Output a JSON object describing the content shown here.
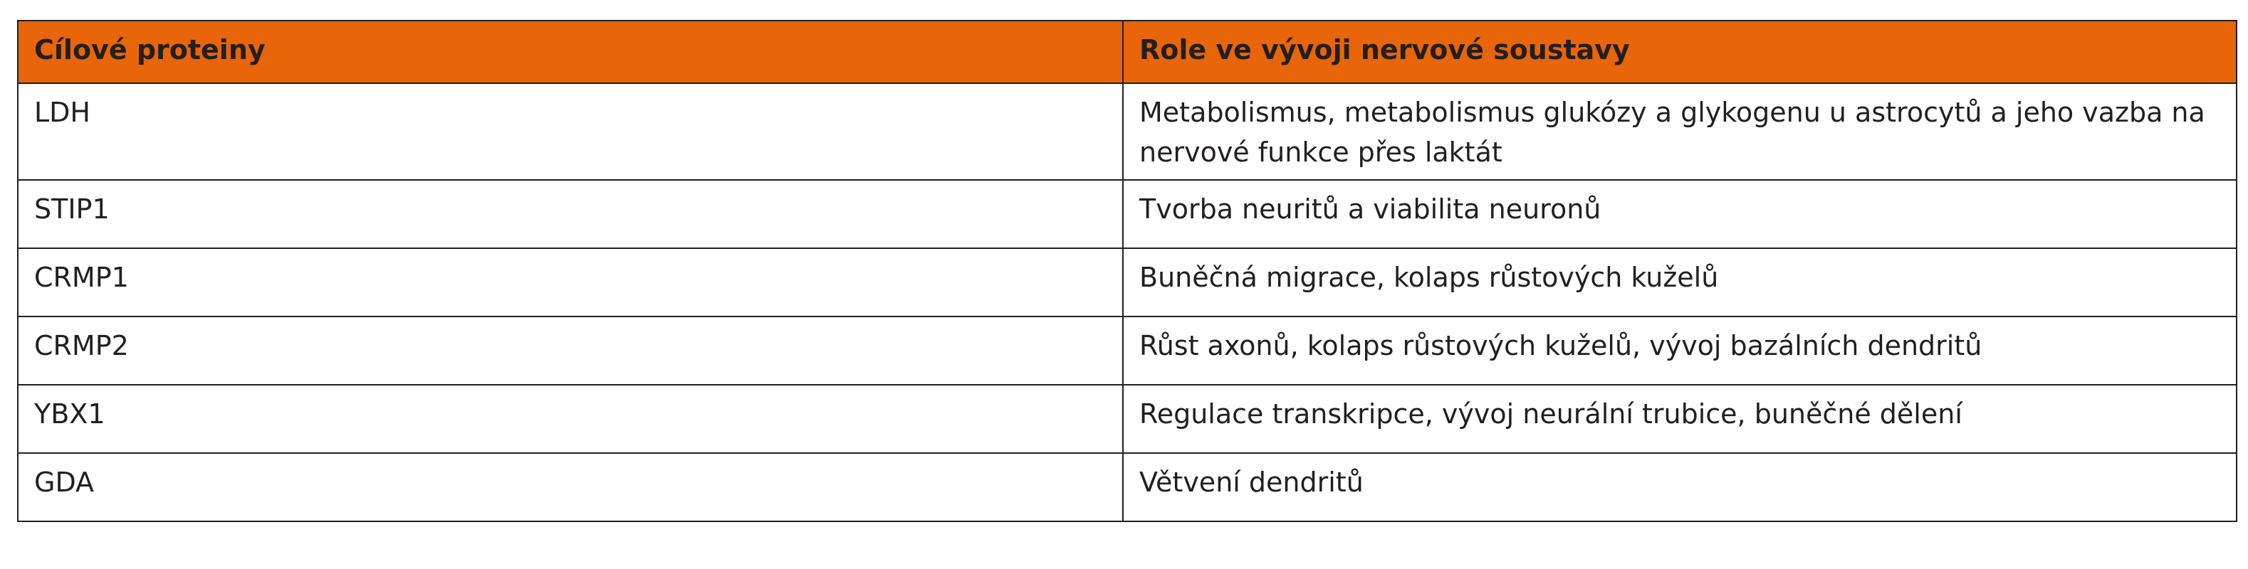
{
  "table": {
    "header": [
      "Cílové proteiny",
      "Role ve vývoji nervové soustavy"
    ],
    "rows": [
      [
        "LDH",
        "Metabolismus, metabolismus glukózy a glykogenu u astrocytů a jeho vazba na nervové funkce přes laktát"
      ],
      [
        "STIP1",
        "Tvorba neuritů a viabilita neuronů"
      ],
      [
        "CRMP1",
        "Buněčná migrace, kolaps růstových kuželů"
      ],
      [
        "CRMP2",
        "Růst axonů, kolaps růstových kuželů, vývoj bazálních dendritů"
      ],
      [
        "YBX1",
        "Regulace transkripce, vývoj neurální trubice, buněčné dělení"
      ],
      [
        "GDA",
        "Větvení dendritů"
      ]
    ]
  }
}
